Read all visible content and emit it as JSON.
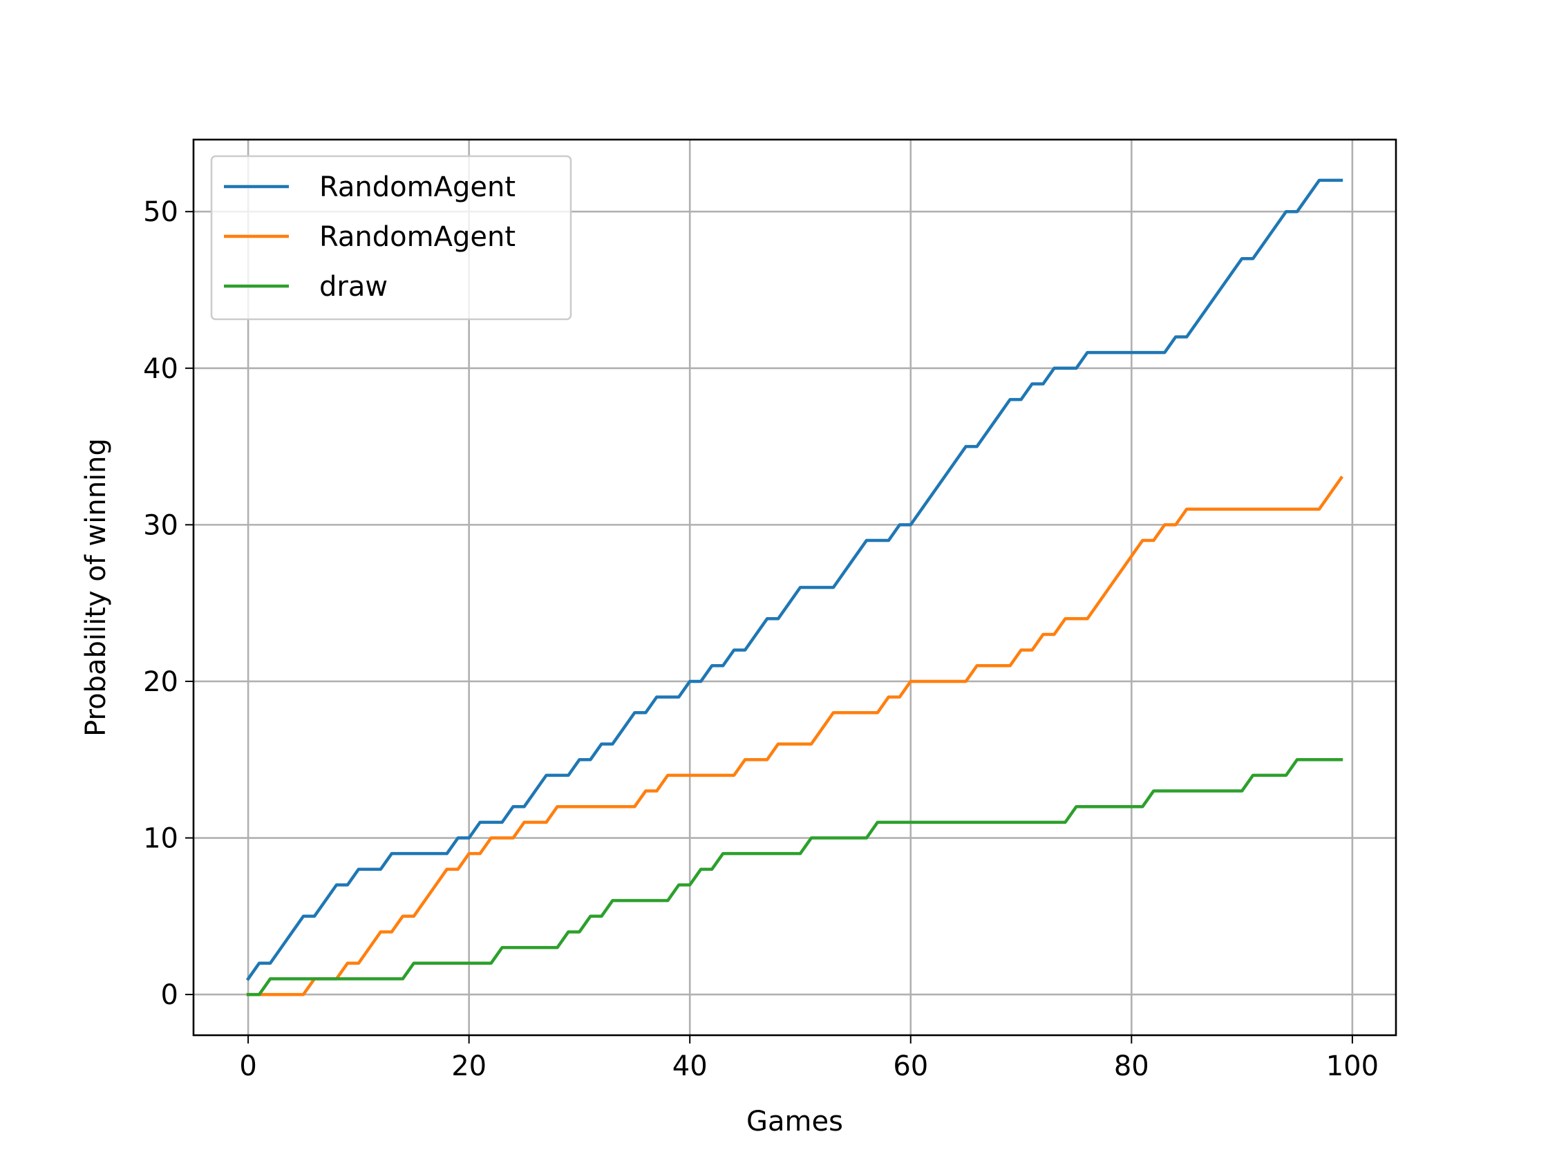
{
  "chart_data": {
    "type": "line",
    "title": "",
    "xlabel": "Games",
    "ylabel": "Probability of winning",
    "xlim": [
      -4.95,
      103.95
    ],
    "ylim": [
      -2.6,
      54.6
    ],
    "xticks": [
      0,
      20,
      40,
      60,
      80,
      100
    ],
    "yticks": [
      0,
      10,
      20,
      30,
      40,
      50
    ],
    "grid": true,
    "legend_position": "top-left",
    "series": [
      {
        "name": "RandomAgent",
        "color": "#1f77b4",
        "values": [
          1,
          2,
          2,
          3,
          4,
          5,
          5,
          6,
          7,
          7,
          8,
          8,
          8,
          9,
          9,
          9,
          9,
          9,
          9,
          10,
          10,
          11,
          11,
          11,
          12,
          12,
          13,
          14,
          14,
          14,
          15,
          15,
          16,
          16,
          17,
          18,
          18,
          19,
          19,
          19,
          20,
          20,
          21,
          21,
          22,
          22,
          23,
          24,
          24,
          25,
          26,
          26,
          26,
          26,
          27,
          28,
          29,
          29,
          29,
          30,
          30,
          31,
          32,
          33,
          34,
          35,
          35,
          36,
          37,
          38,
          38,
          39,
          39,
          40,
          40,
          40,
          41,
          41,
          41,
          41,
          41,
          41,
          41,
          41,
          42,
          42,
          43,
          44,
          45,
          46,
          47,
          47,
          48,
          49,
          50,
          50,
          51,
          52,
          52,
          52
        ]
      },
      {
        "name": "RandomAgent",
        "color": "#ff7f0e",
        "values": [
          0,
          0,
          0,
          0,
          0,
          0,
          1,
          1,
          1,
          2,
          2,
          3,
          4,
          4,
          5,
          5,
          6,
          7,
          8,
          8,
          9,
          9,
          10,
          10,
          10,
          11,
          11,
          11,
          12,
          12,
          12,
          12,
          12,
          12,
          12,
          12,
          13,
          13,
          14,
          14,
          14,
          14,
          14,
          14,
          14,
          15,
          15,
          15,
          16,
          16,
          16,
          16,
          17,
          18,
          18,
          18,
          18,
          18,
          19,
          19,
          20,
          20,
          20,
          20,
          20,
          20,
          21,
          21,
          21,
          21,
          22,
          22,
          23,
          23,
          24,
          24,
          24,
          25,
          26,
          27,
          28,
          29,
          29,
          30,
          30,
          31,
          31,
          31,
          31,
          31,
          31,
          31,
          31,
          31,
          31,
          31,
          31,
          31,
          32,
          33
        ]
      },
      {
        "name": "draw",
        "color": "#2ca02c",
        "values": [
          0,
          0,
          1,
          1,
          1,
          1,
          1,
          1,
          1,
          1,
          1,
          1,
          1,
          1,
          1,
          2,
          2,
          2,
          2,
          2,
          2,
          2,
          2,
          3,
          3,
          3,
          3,
          3,
          3,
          4,
          4,
          5,
          5,
          6,
          6,
          6,
          6,
          6,
          6,
          7,
          7,
          8,
          8,
          9,
          9,
          9,
          9,
          9,
          9,
          9,
          9,
          10,
          10,
          10,
          10,
          10,
          10,
          11,
          11,
          11,
          11,
          11,
          11,
          11,
          11,
          11,
          11,
          11,
          11,
          11,
          11,
          11,
          11,
          11,
          11,
          12,
          12,
          12,
          12,
          12,
          12,
          12,
          13,
          13,
          13,
          13,
          13,
          13,
          13,
          13,
          13,
          14,
          14,
          14,
          14,
          15,
          15,
          15,
          15,
          15
        ]
      }
    ]
  }
}
